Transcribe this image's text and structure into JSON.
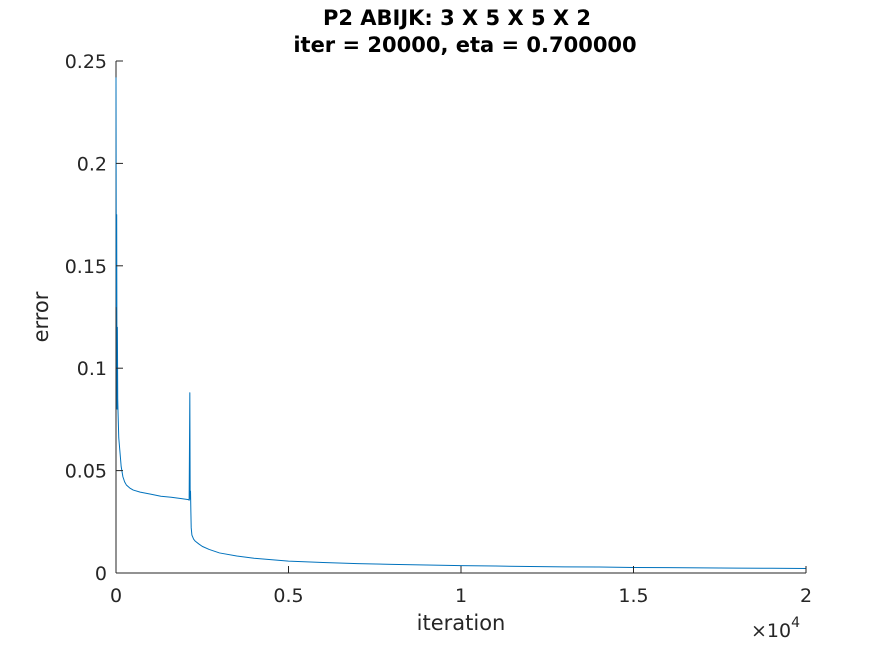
{
  "chart_data": {
    "type": "line",
    "title_lines": [
      "P2 ABIJK: 3 X 5 X 5 X 2",
      "iter = 20000, eta = 0.700000"
    ],
    "xlabel": "iteration",
    "ylabel": "error",
    "xlim": [
      0,
      20000
    ],
    "ylim": [
      0,
      0.25
    ],
    "x_ticks": [
      0,
      5000,
      10000,
      15000,
      20000
    ],
    "x_tick_labels": [
      "0",
      "0.5",
      "1",
      "1.5",
      "2"
    ],
    "x_exponent_base": "×10",
    "x_exponent_power": "4",
    "y_ticks": [
      0,
      0.05,
      0.1,
      0.15,
      0.2,
      0.25
    ],
    "y_tick_labels": [
      "0",
      "0.05",
      "0.1",
      "0.15",
      "0.2",
      "0.25"
    ],
    "grid": false,
    "line_color": "#0072BD",
    "series": [
      {
        "x": [
          0,
          10,
          20,
          30,
          40,
          50,
          60,
          80,
          100,
          150,
          200,
          250,
          300,
          400,
          500,
          700,
          1000,
          1300,
          1600,
          1900,
          2100,
          2120,
          2140,
          2150,
          2160,
          2170,
          2180,
          2200,
          2250,
          2300,
          2400,
          2500,
          2700,
          3000,
          3500,
          4000,
          5000,
          6000,
          7000,
          8000,
          9000,
          10000,
          11000,
          12000,
          13000,
          14000,
          15000,
          16000,
          17000,
          18000,
          19000,
          20000
        ],
        "y": [
          0.242,
          0.13,
          0.175,
          0.08,
          0.12,
          0.085,
          0.078,
          0.066,
          0.062,
          0.052,
          0.047,
          0.0445,
          0.043,
          0.0415,
          0.0405,
          0.0395,
          0.0385,
          0.0375,
          0.037,
          0.0363,
          0.0358,
          0.0355,
          0.088,
          0.036,
          0.04,
          0.03,
          0.022,
          0.0185,
          0.0165,
          0.0155,
          0.0142,
          0.013,
          0.0115,
          0.0098,
          0.0083,
          0.0072,
          0.0058,
          0.0051,
          0.0046,
          0.0042,
          0.0039,
          0.0036,
          0.0034,
          0.0032,
          0.003,
          0.0029,
          0.0027,
          0.0026,
          0.0025,
          0.0024,
          0.0023,
          0.0022
        ]
      }
    ]
  }
}
